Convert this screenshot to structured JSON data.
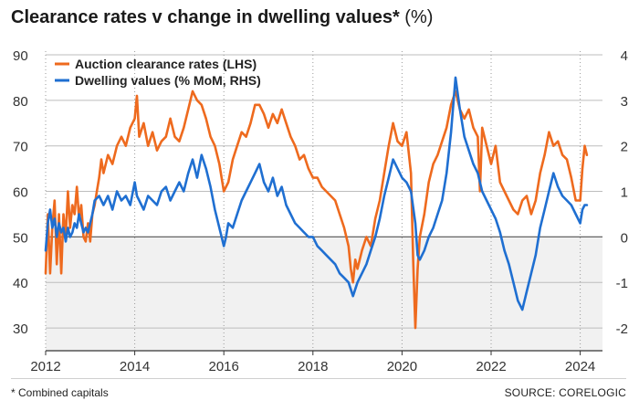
{
  "title": "Clearance rates v change in dwelling values*",
  "title_unit": " (%)",
  "footnote": "* Combined capitals",
  "source": "SOURCE: CORELOGIC",
  "colors": {
    "clearance": "#ee6a1e",
    "dwelling": "#1f6fd1",
    "grid": "#bdbdbd",
    "negative_shade": "#f1f1f1",
    "zero_line": "#666666"
  },
  "chart_data": {
    "type": "line",
    "grid": true,
    "legend_placement": "top-left",
    "left_axis": {
      "ylim": [
        25,
        90
      ],
      "ticks": [
        30,
        40,
        50,
        60,
        70,
        80,
        90
      ]
    },
    "right_axis": {
      "ylim": [
        -2.5,
        4
      ],
      "ticks": [
        -2,
        -1,
        0,
        1,
        2,
        3,
        4
      ],
      "tick_labels": [
        "-2",
        "-1",
        "0",
        "1",
        "2",
        "3",
        "4"
      ]
    },
    "xlim": [
      2012,
      2024.5
    ],
    "x_ticks": [
      2012,
      2014,
      2016,
      2018,
      2020,
      2022,
      2024
    ],
    "series": [
      {
        "name": "Auction clearance rates (LHS)",
        "axis": "left",
        "points": [
          [
            2012.0,
            42
          ],
          [
            2012.05,
            55
          ],
          [
            2012.1,
            42
          ],
          [
            2012.15,
            52
          ],
          [
            2012.2,
            58
          ],
          [
            2012.25,
            44
          ],
          [
            2012.3,
            55
          ],
          [
            2012.35,
            42
          ],
          [
            2012.4,
            55
          ],
          [
            2012.45,
            50
          ],
          [
            2012.5,
            60
          ],
          [
            2012.55,
            52
          ],
          [
            2012.6,
            57
          ],
          [
            2012.65,
            55
          ],
          [
            2012.7,
            61
          ],
          [
            2012.75,
            54
          ],
          [
            2012.8,
            57
          ],
          [
            2012.85,
            50
          ],
          [
            2012.9,
            49
          ],
          [
            2012.95,
            53
          ],
          [
            2013.0,
            49
          ],
          [
            2013.05,
            55
          ],
          [
            2013.1,
            57
          ],
          [
            2013.15,
            60
          ],
          [
            2013.2,
            63
          ],
          [
            2013.25,
            67
          ],
          [
            2013.3,
            64
          ],
          [
            2013.4,
            68
          ],
          [
            2013.5,
            66
          ],
          [
            2013.6,
            70
          ],
          [
            2013.7,
            72
          ],
          [
            2013.8,
            70
          ],
          [
            2013.9,
            74
          ],
          [
            2014.0,
            76
          ],
          [
            2014.05,
            81
          ],
          [
            2014.1,
            72
          ],
          [
            2014.2,
            75
          ],
          [
            2014.3,
            70
          ],
          [
            2014.4,
            73
          ],
          [
            2014.5,
            69
          ],
          [
            2014.6,
            71
          ],
          [
            2014.7,
            72
          ],
          [
            2014.8,
            76
          ],
          [
            2014.9,
            72
          ],
          [
            2015.0,
            71
          ],
          [
            2015.1,
            74
          ],
          [
            2015.2,
            78
          ],
          [
            2015.3,
            82
          ],
          [
            2015.4,
            80
          ],
          [
            2015.5,
            79
          ],
          [
            2015.6,
            76
          ],
          [
            2015.7,
            72
          ],
          [
            2015.8,
            70
          ],
          [
            2015.9,
            66
          ],
          [
            2016.0,
            60
          ],
          [
            2016.1,
            62
          ],
          [
            2016.2,
            67
          ],
          [
            2016.3,
            70
          ],
          [
            2016.4,
            73
          ],
          [
            2016.5,
            72
          ],
          [
            2016.6,
            75
          ],
          [
            2016.7,
            79
          ],
          [
            2016.8,
            79
          ],
          [
            2016.9,
            77
          ],
          [
            2017.0,
            74
          ],
          [
            2017.1,
            77
          ],
          [
            2017.2,
            75
          ],
          [
            2017.3,
            78
          ],
          [
            2017.4,
            75
          ],
          [
            2017.5,
            72
          ],
          [
            2017.6,
            70
          ],
          [
            2017.7,
            67
          ],
          [
            2017.8,
            68
          ],
          [
            2017.9,
            65
          ],
          [
            2018.0,
            63
          ],
          [
            2018.1,
            63
          ],
          [
            2018.2,
            61
          ],
          [
            2018.3,
            60
          ],
          [
            2018.4,
            59
          ],
          [
            2018.5,
            58
          ],
          [
            2018.6,
            55
          ],
          [
            2018.7,
            52
          ],
          [
            2018.8,
            48
          ],
          [
            2018.85,
            43
          ],
          [
            2018.9,
            40
          ],
          [
            2018.95,
            45
          ],
          [
            2019.0,
            43
          ],
          [
            2019.1,
            47
          ],
          [
            2019.2,
            50
          ],
          [
            2019.3,
            48
          ],
          [
            2019.4,
            54
          ],
          [
            2019.5,
            58
          ],
          [
            2019.6,
            64
          ],
          [
            2019.7,
            70
          ],
          [
            2019.8,
            75
          ],
          [
            2019.9,
            71
          ],
          [
            2020.0,
            70
          ],
          [
            2020.1,
            73
          ],
          [
            2020.2,
            64
          ],
          [
            2020.25,
            45
          ],
          [
            2020.3,
            30
          ],
          [
            2020.35,
            43
          ],
          [
            2020.4,
            50
          ],
          [
            2020.5,
            55
          ],
          [
            2020.6,
            62
          ],
          [
            2020.7,
            66
          ],
          [
            2020.8,
            68
          ],
          [
            2020.9,
            71
          ],
          [
            2021.0,
            74
          ],
          [
            2021.1,
            79
          ],
          [
            2021.2,
            82
          ],
          [
            2021.3,
            78
          ],
          [
            2021.4,
            76
          ],
          [
            2021.5,
            78
          ],
          [
            2021.6,
            74
          ],
          [
            2021.7,
            72
          ],
          [
            2021.75,
            60
          ],
          [
            2021.8,
            74
          ],
          [
            2021.9,
            70
          ],
          [
            2022.0,
            66
          ],
          [
            2022.1,
            70
          ],
          [
            2022.2,
            62
          ],
          [
            2022.3,
            60
          ],
          [
            2022.4,
            58
          ],
          [
            2022.5,
            56
          ],
          [
            2022.6,
            55
          ],
          [
            2022.7,
            58
          ],
          [
            2022.8,
            59
          ],
          [
            2022.9,
            55
          ],
          [
            2023.0,
            58
          ],
          [
            2023.1,
            64
          ],
          [
            2023.2,
            68
          ],
          [
            2023.3,
            73
          ],
          [
            2023.4,
            70
          ],
          [
            2023.5,
            71
          ],
          [
            2023.6,
            68
          ],
          [
            2023.7,
            67
          ],
          [
            2023.8,
            63
          ],
          [
            2023.9,
            58
          ],
          [
            2024.0,
            58
          ],
          [
            2024.05,
            65
          ],
          [
            2024.1,
            70
          ],
          [
            2024.15,
            68
          ]
        ]
      },
      {
        "name": "Dwelling values (% MoM, RHS)",
        "axis": "right",
        "points": [
          [
            2012.0,
            -0.3
          ],
          [
            2012.05,
            0.3
          ],
          [
            2012.1,
            0.6
          ],
          [
            2012.15,
            0.2
          ],
          [
            2012.2,
            0.4
          ],
          [
            2012.25,
            0.0
          ],
          [
            2012.3,
            0.3
          ],
          [
            2012.35,
            0.1
          ],
          [
            2012.4,
            0.2
          ],
          [
            2012.45,
            -0.1
          ],
          [
            2012.5,
            0.2
          ],
          [
            2012.55,
            0.0
          ],
          [
            2012.6,
            0.1
          ],
          [
            2012.65,
            0.3
          ],
          [
            2012.7,
            0.2
          ],
          [
            2012.75,
            0.5
          ],
          [
            2012.8,
            0.3
          ],
          [
            2012.85,
            0.1
          ],
          [
            2012.9,
            0.2
          ],
          [
            2012.95,
            0.1
          ],
          [
            2013.0,
            0.3
          ],
          [
            2013.05,
            0.5
          ],
          [
            2013.1,
            0.8
          ],
          [
            2013.2,
            0.9
          ],
          [
            2013.3,
            0.7
          ],
          [
            2013.4,
            0.9
          ],
          [
            2013.5,
            0.6
          ],
          [
            2013.6,
            1.0
          ],
          [
            2013.7,
            0.8
          ],
          [
            2013.8,
            0.9
          ],
          [
            2013.9,
            0.7
          ],
          [
            2014.0,
            1.2
          ],
          [
            2014.05,
            0.9
          ],
          [
            2014.1,
            0.8
          ],
          [
            2014.2,
            0.6
          ],
          [
            2014.3,
            0.9
          ],
          [
            2014.4,
            0.8
          ],
          [
            2014.5,
            0.7
          ],
          [
            2014.6,
            1.0
          ],
          [
            2014.7,
            1.1
          ],
          [
            2014.8,
            0.8
          ],
          [
            2014.9,
            1.0
          ],
          [
            2015.0,
            1.2
          ],
          [
            2015.1,
            1.0
          ],
          [
            2015.2,
            1.4
          ],
          [
            2015.3,
            1.7
          ],
          [
            2015.4,
            1.3
          ],
          [
            2015.5,
            1.8
          ],
          [
            2015.6,
            1.5
          ],
          [
            2015.7,
            1.1
          ],
          [
            2015.8,
            0.6
          ],
          [
            2015.9,
            0.2
          ],
          [
            2016.0,
            -0.2
          ],
          [
            2016.05,
            0.0
          ],
          [
            2016.1,
            0.3
          ],
          [
            2016.2,
            0.2
          ],
          [
            2016.3,
            0.5
          ],
          [
            2016.4,
            0.8
          ],
          [
            2016.5,
            1.0
          ],
          [
            2016.6,
            1.2
          ],
          [
            2016.7,
            1.4
          ],
          [
            2016.8,
            1.6
          ],
          [
            2016.9,
            1.2
          ],
          [
            2017.0,
            1.0
          ],
          [
            2017.1,
            1.3
          ],
          [
            2017.2,
            0.9
          ],
          [
            2017.3,
            1.1
          ],
          [
            2017.4,
            0.7
          ],
          [
            2017.5,
            0.5
          ],
          [
            2017.6,
            0.3
          ],
          [
            2017.7,
            0.2
          ],
          [
            2017.8,
            0.1
          ],
          [
            2017.9,
            0.0
          ],
          [
            2018.0,
            0.0
          ],
          [
            2018.1,
            -0.2
          ],
          [
            2018.2,
            -0.3
          ],
          [
            2018.3,
            -0.4
          ],
          [
            2018.4,
            -0.5
          ],
          [
            2018.5,
            -0.6
          ],
          [
            2018.6,
            -0.8
          ],
          [
            2018.7,
            -0.9
          ],
          [
            2018.8,
            -1.0
          ],
          [
            2018.9,
            -1.3
          ],
          [
            2019.0,
            -1.0
          ],
          [
            2019.1,
            -0.8
          ],
          [
            2019.2,
            -0.6
          ],
          [
            2019.3,
            -0.3
          ],
          [
            2019.4,
            0.0
          ],
          [
            2019.5,
            0.4
          ],
          [
            2019.6,
            0.9
          ],
          [
            2019.7,
            1.3
          ],
          [
            2019.8,
            1.7
          ],
          [
            2019.9,
            1.5
          ],
          [
            2020.0,
            1.3
          ],
          [
            2020.1,
            1.2
          ],
          [
            2020.2,
            1.0
          ],
          [
            2020.3,
            0.3
          ],
          [
            2020.35,
            -0.4
          ],
          [
            2020.4,
            -0.5
          ],
          [
            2020.5,
            -0.3
          ],
          [
            2020.6,
            0.0
          ],
          [
            2020.7,
            0.2
          ],
          [
            2020.8,
            0.5
          ],
          [
            2020.9,
            0.8
          ],
          [
            2021.0,
            1.4
          ],
          [
            2021.1,
            2.3
          ],
          [
            2021.2,
            3.5
          ],
          [
            2021.3,
            2.8
          ],
          [
            2021.4,
            2.2
          ],
          [
            2021.5,
            1.9
          ],
          [
            2021.6,
            1.6
          ],
          [
            2021.7,
            1.4
          ],
          [
            2021.8,
            1.0
          ],
          [
            2021.9,
            0.8
          ],
          [
            2022.0,
            0.6
          ],
          [
            2022.1,
            0.4
          ],
          [
            2022.2,
            0.1
          ],
          [
            2022.3,
            -0.3
          ],
          [
            2022.4,
            -0.6
          ],
          [
            2022.5,
            -1.0
          ],
          [
            2022.6,
            -1.4
          ],
          [
            2022.7,
            -1.6
          ],
          [
            2022.8,
            -1.2
          ],
          [
            2022.9,
            -0.8
          ],
          [
            2023.0,
            -0.4
          ],
          [
            2023.1,
            0.2
          ],
          [
            2023.2,
            0.6
          ],
          [
            2023.3,
            1.0
          ],
          [
            2023.4,
            1.4
          ],
          [
            2023.5,
            1.1
          ],
          [
            2023.6,
            0.9
          ],
          [
            2023.7,
            0.8
          ],
          [
            2023.8,
            0.7
          ],
          [
            2023.9,
            0.5
          ],
          [
            2024.0,
            0.3
          ],
          [
            2024.05,
            0.6
          ],
          [
            2024.1,
            0.7
          ],
          [
            2024.15,
            0.7
          ]
        ]
      }
    ]
  }
}
